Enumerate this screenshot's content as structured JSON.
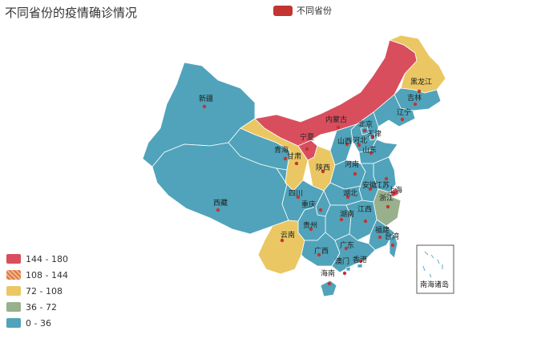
{
  "title": "不同省份的疫情确诊情况",
  "legend": {
    "series_name": "不同省份",
    "color": "#c23531"
  },
  "visual_map": [
    {
      "label": "144 - 180",
      "color": "#d94e5d"
    },
    {
      "label": "108 - 144",
      "color": "#e07a3a"
    },
    {
      "label": "72 - 108",
      "color": "#eac763"
    },
    {
      "label": "36 - 72",
      "color": "#98b08c"
    },
    {
      "label": "0 - 36",
      "color": "#50a3ba"
    }
  ],
  "inset_label": "南海诸岛",
  "provinces": {
    "xinjiang": {
      "name": "新疆",
      "band": 4
    },
    "xizang": {
      "name": "西藏",
      "band": 4
    },
    "qinghai": {
      "name": "青海",
      "band": 4
    },
    "gansu": {
      "name": "甘肃",
      "band": 2
    },
    "neimenggu": {
      "name": "内蒙古",
      "band": 0
    },
    "heilongjiang": {
      "name": "黑龙江",
      "band": 2
    },
    "jilin": {
      "name": "吉林",
      "band": 4
    },
    "liaoning": {
      "name": "辽宁",
      "band": 4
    },
    "beijing": {
      "name": "北京",
      "band": 4
    },
    "tianjin": {
      "name": "天津",
      "band": 4
    },
    "hebei": {
      "name": "河北",
      "band": 4
    },
    "shanxi": {
      "name": "山西",
      "band": 4
    },
    "shandong": {
      "name": "山东",
      "band": 4
    },
    "ningxia": {
      "name": "宁夏",
      "band": 0
    },
    "shaanxi": {
      "name": "陕西",
      "band": 2
    },
    "henan": {
      "name": "河南",
      "band": 4
    },
    "jiangsu": {
      "name": "江苏",
      "band": 4
    },
    "anhui": {
      "name": "安徽",
      "band": 4
    },
    "shanghai": {
      "name": "上海",
      "band": 0
    },
    "zhejiang": {
      "name": "浙江",
      "band": 3
    },
    "hubei": {
      "name": "湖北",
      "band": 4
    },
    "sichuan": {
      "name": "四川",
      "band": 4
    },
    "chongqing": {
      "name": "重庆",
      "band": 4
    },
    "hunan": {
      "name": "湖南",
      "band": 4
    },
    "jiangxi": {
      "name": "江西",
      "band": 4
    },
    "fujian": {
      "name": "福建",
      "band": 4
    },
    "guizhou": {
      "name": "贵州",
      "band": 4
    },
    "yunnan": {
      "name": "云南",
      "band": 2
    },
    "guangxi": {
      "name": "广西",
      "band": 4
    },
    "guangdong": {
      "name": "广东",
      "band": 4
    },
    "taiwan": {
      "name": "台湾",
      "band": 4
    },
    "hainan": {
      "name": "海南",
      "band": 4
    },
    "hongkong": {
      "name": "香港",
      "band": 4
    },
    "macau": {
      "name": "澳门",
      "band": 4
    }
  }
}
